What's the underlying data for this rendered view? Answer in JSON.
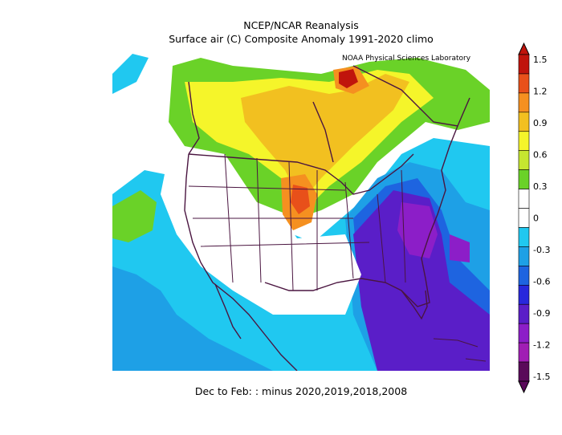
{
  "header": {
    "title": "NCEP/NCAR Reanalysis",
    "subtitle": "Surface air (C) Composite Anomaly 1991-2020 climo",
    "credit": "NOAA Physical Sciences Laboratory"
  },
  "footer": {
    "text": "Dec to Feb: :  minus 2020,2019,2018,2008"
  },
  "colorbar": {
    "ticks": [
      "1.5",
      "1.2",
      "0.9",
      "0.6",
      "0.3",
      "0",
      "-0.3",
      "-0.6",
      "-0.9",
      "-1.2",
      "-1.5"
    ],
    "colors": [
      "#c0140c",
      "#e8501a",
      "#f59020",
      "#f2c020",
      "#f5f52a",
      "#c6e630",
      "#6ad228",
      "#ffffff",
      "#ffffff",
      "#20c8f0",
      "#1ea0e6",
      "#1e64e0",
      "#2828dc",
      "#5a1ec8",
      "#8c1ec8",
      "#a01eb4",
      "#5a0a5a"
    ]
  },
  "legend_colors": {
    "red": "#c0140c",
    "orange": "#f59020",
    "yellow": "#f5f52a",
    "green": "#6ad228",
    "cyan": "#20c8f0",
    "blue": "#1e64e0",
    "purple": "#8c1ec8",
    "boundary": "#4a1540"
  }
}
